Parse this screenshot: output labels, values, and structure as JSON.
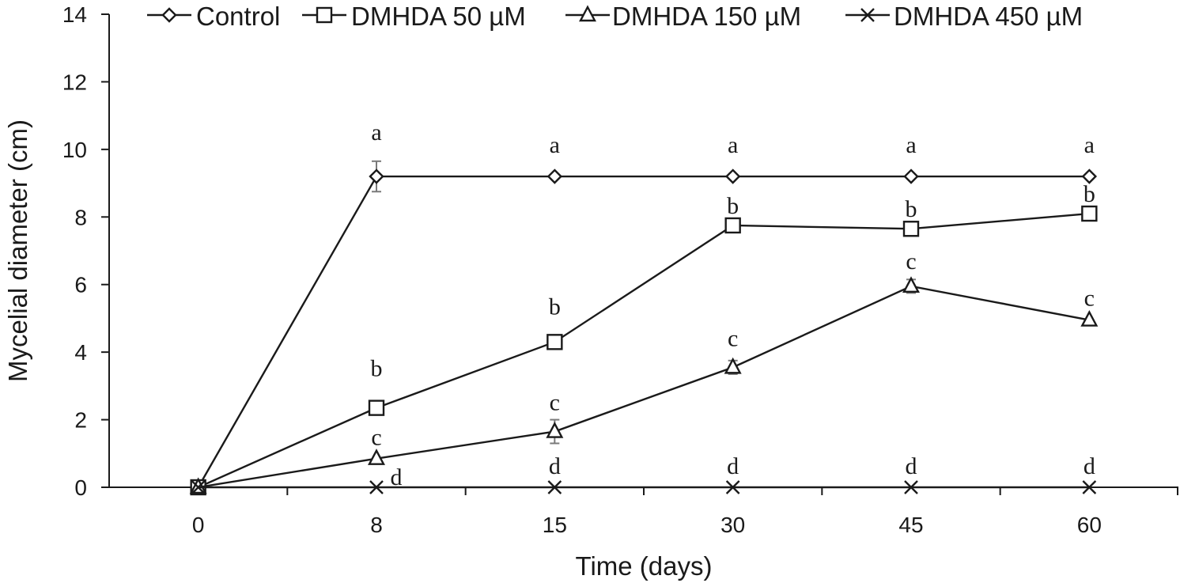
{
  "chart_data": {
    "type": "line",
    "title": "",
    "xlabel": "Time (days)",
    "ylabel": "Mycelial diameter (cm)",
    "categories": [
      "0",
      "8",
      "15",
      "30",
      "45",
      "60"
    ],
    "ylim": [
      0,
      14
    ],
    "yticks": [
      0,
      2,
      4,
      6,
      8,
      10,
      12,
      14
    ],
    "grid": false,
    "legend_position": "top",
    "series": [
      {
        "name": "Control",
        "marker": "diamond",
        "values": [
          0,
          9.2,
          9.2,
          9.2,
          9.2,
          9.2
        ],
        "errors": [
          0,
          0.45,
          0,
          0,
          0,
          0
        ],
        "letters": [
          "",
          "a",
          "a",
          "a",
          "a",
          "a"
        ]
      },
      {
        "name": "DMHDA 50 µM",
        "marker": "square",
        "values": [
          0,
          2.35,
          4.3,
          7.75,
          7.65,
          8.1
        ],
        "errors": [
          0,
          0,
          0,
          0,
          0,
          0
        ],
        "letters": [
          "",
          "b",
          "b",
          "b",
          "b",
          "b"
        ]
      },
      {
        "name": "DMHDA 150 µM",
        "marker": "triangle",
        "values": [
          0,
          0.85,
          1.65,
          3.55,
          5.95,
          4.95
        ],
        "errors": [
          0,
          0,
          0.35,
          0.2,
          0.2,
          0
        ],
        "letters": [
          "",
          "c",
          "c",
          "c",
          "c",
          "c"
        ]
      },
      {
        "name": "DMHDA 450 µM",
        "marker": "x",
        "values": [
          0,
          0,
          0,
          0,
          0,
          0
        ],
        "errors": [
          0,
          0,
          0,
          0,
          0,
          0
        ],
        "letters": [
          "",
          "d",
          "d",
          "d",
          "d",
          "d"
        ]
      }
    ],
    "colors": {
      "line": "#1a1a1a",
      "error_bar": "#7a7a7a",
      "background": "#ffffff"
    }
  }
}
